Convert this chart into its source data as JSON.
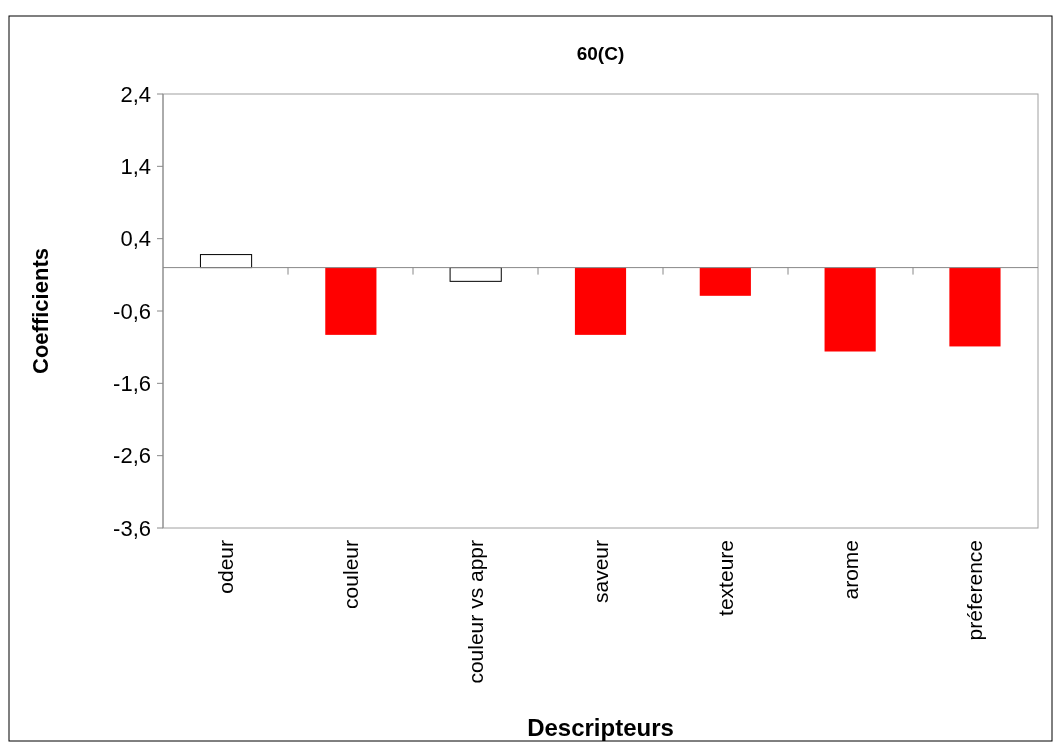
{
  "chart_data": {
    "type": "bar",
    "title": "60(C)",
    "xlabel": "Descripteurs",
    "ylabel": "Coefficients",
    "categories": [
      "odeur",
      "couleur",
      "couleur vs appr",
      "saveur",
      "texteure",
      "arome",
      "préference"
    ],
    "values": [
      0.18,
      -0.93,
      -0.19,
      -0.93,
      -0.39,
      -1.16,
      -1.09
    ],
    "colors": [
      "#ffffff",
      "#ff0000",
      "#ffffff",
      "#ff0000",
      "#ff0000",
      "#ff0000",
      "#ff0000"
    ],
    "ylim": [
      -3.6,
      2.4
    ],
    "yticks": [
      {
        "value": 2.4,
        "label": "2,4"
      },
      {
        "value": 1.4,
        "label": "1,4"
      },
      {
        "value": 0.4,
        "label": "0,4"
      },
      {
        "value": -0.6,
        "label": "-0,6"
      },
      {
        "value": -1.6,
        "label": "-1,6"
      },
      {
        "value": -2.6,
        "label": "-2,6"
      },
      {
        "value": -3.6,
        "label": "-3,6"
      }
    ],
    "grid": false
  }
}
